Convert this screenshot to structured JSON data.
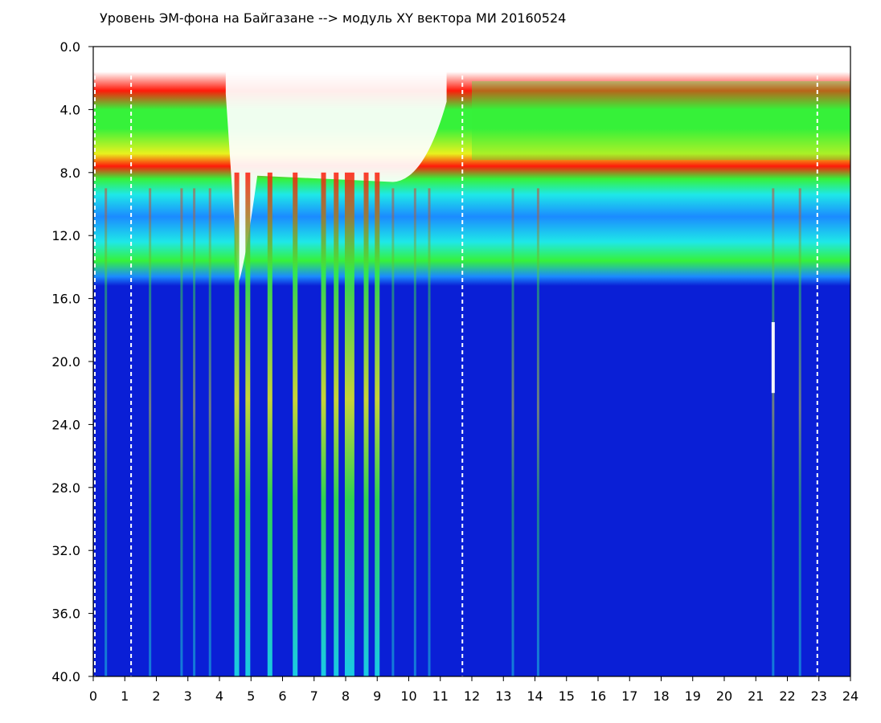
{
  "chart_data": {
    "type": "heatmap",
    "title": "Уровень ЭМ-фона на Байгазане  --> модуль XY вектора МИ  20160524",
    "xlabel": "",
    "ylabel": "",
    "x_ticks": [
      "0",
      "1",
      "2",
      "3",
      "4",
      "5",
      "6",
      "7",
      "8",
      "9",
      "10",
      "11",
      "12",
      "13",
      "14",
      "15",
      "16",
      "17",
      "18",
      "19",
      "20",
      "21",
      "22",
      "23",
      "24"
    ],
    "y_ticks": [
      "0.0",
      "4.0",
      "8.0",
      "12.0",
      "16.0",
      "20.0",
      "24.0",
      "28.0",
      "32.0",
      "36.0",
      "40.0"
    ],
    "xlim": [
      0,
      24
    ],
    "ylim": [
      0,
      40
    ],
    "y_inverted": true,
    "colormap": [
      "#0a1fd6",
      "#1b8bff",
      "#1ee8e8",
      "#36f23a",
      "#e8f21e",
      "#ff1a0a"
    ],
    "background": "#ffffff",
    "dashed_time_markers": [
      0,
      1.2,
      11.7,
      22.95
    ],
    "marker_color": "#ffffff",
    "bands": [
      {
        "name": "",
        "y_top": 1.8,
        "y_bottom": 7.5,
        "note": ""
      },
      {
        "name": "",
        "y_top": 8.2,
        "y_bottom": 15.0,
        "note": ""
      },
      {
        "name": "",
        "y_top": 15.0,
        "y_bottom": 40.0,
        "note": ""
      }
    ],
    "interference_stripes_x": [
      0.4,
      1.8,
      2.8,
      3.2,
      3.7,
      4.55,
      4.9,
      5.6,
      6.4,
      7.3,
      7.7,
      8.05,
      8.2,
      8.65,
      9.0,
      9.5,
      10.2,
      10.65,
      13.3,
      14.1,
      21.55,
      22.4
    ]
  }
}
